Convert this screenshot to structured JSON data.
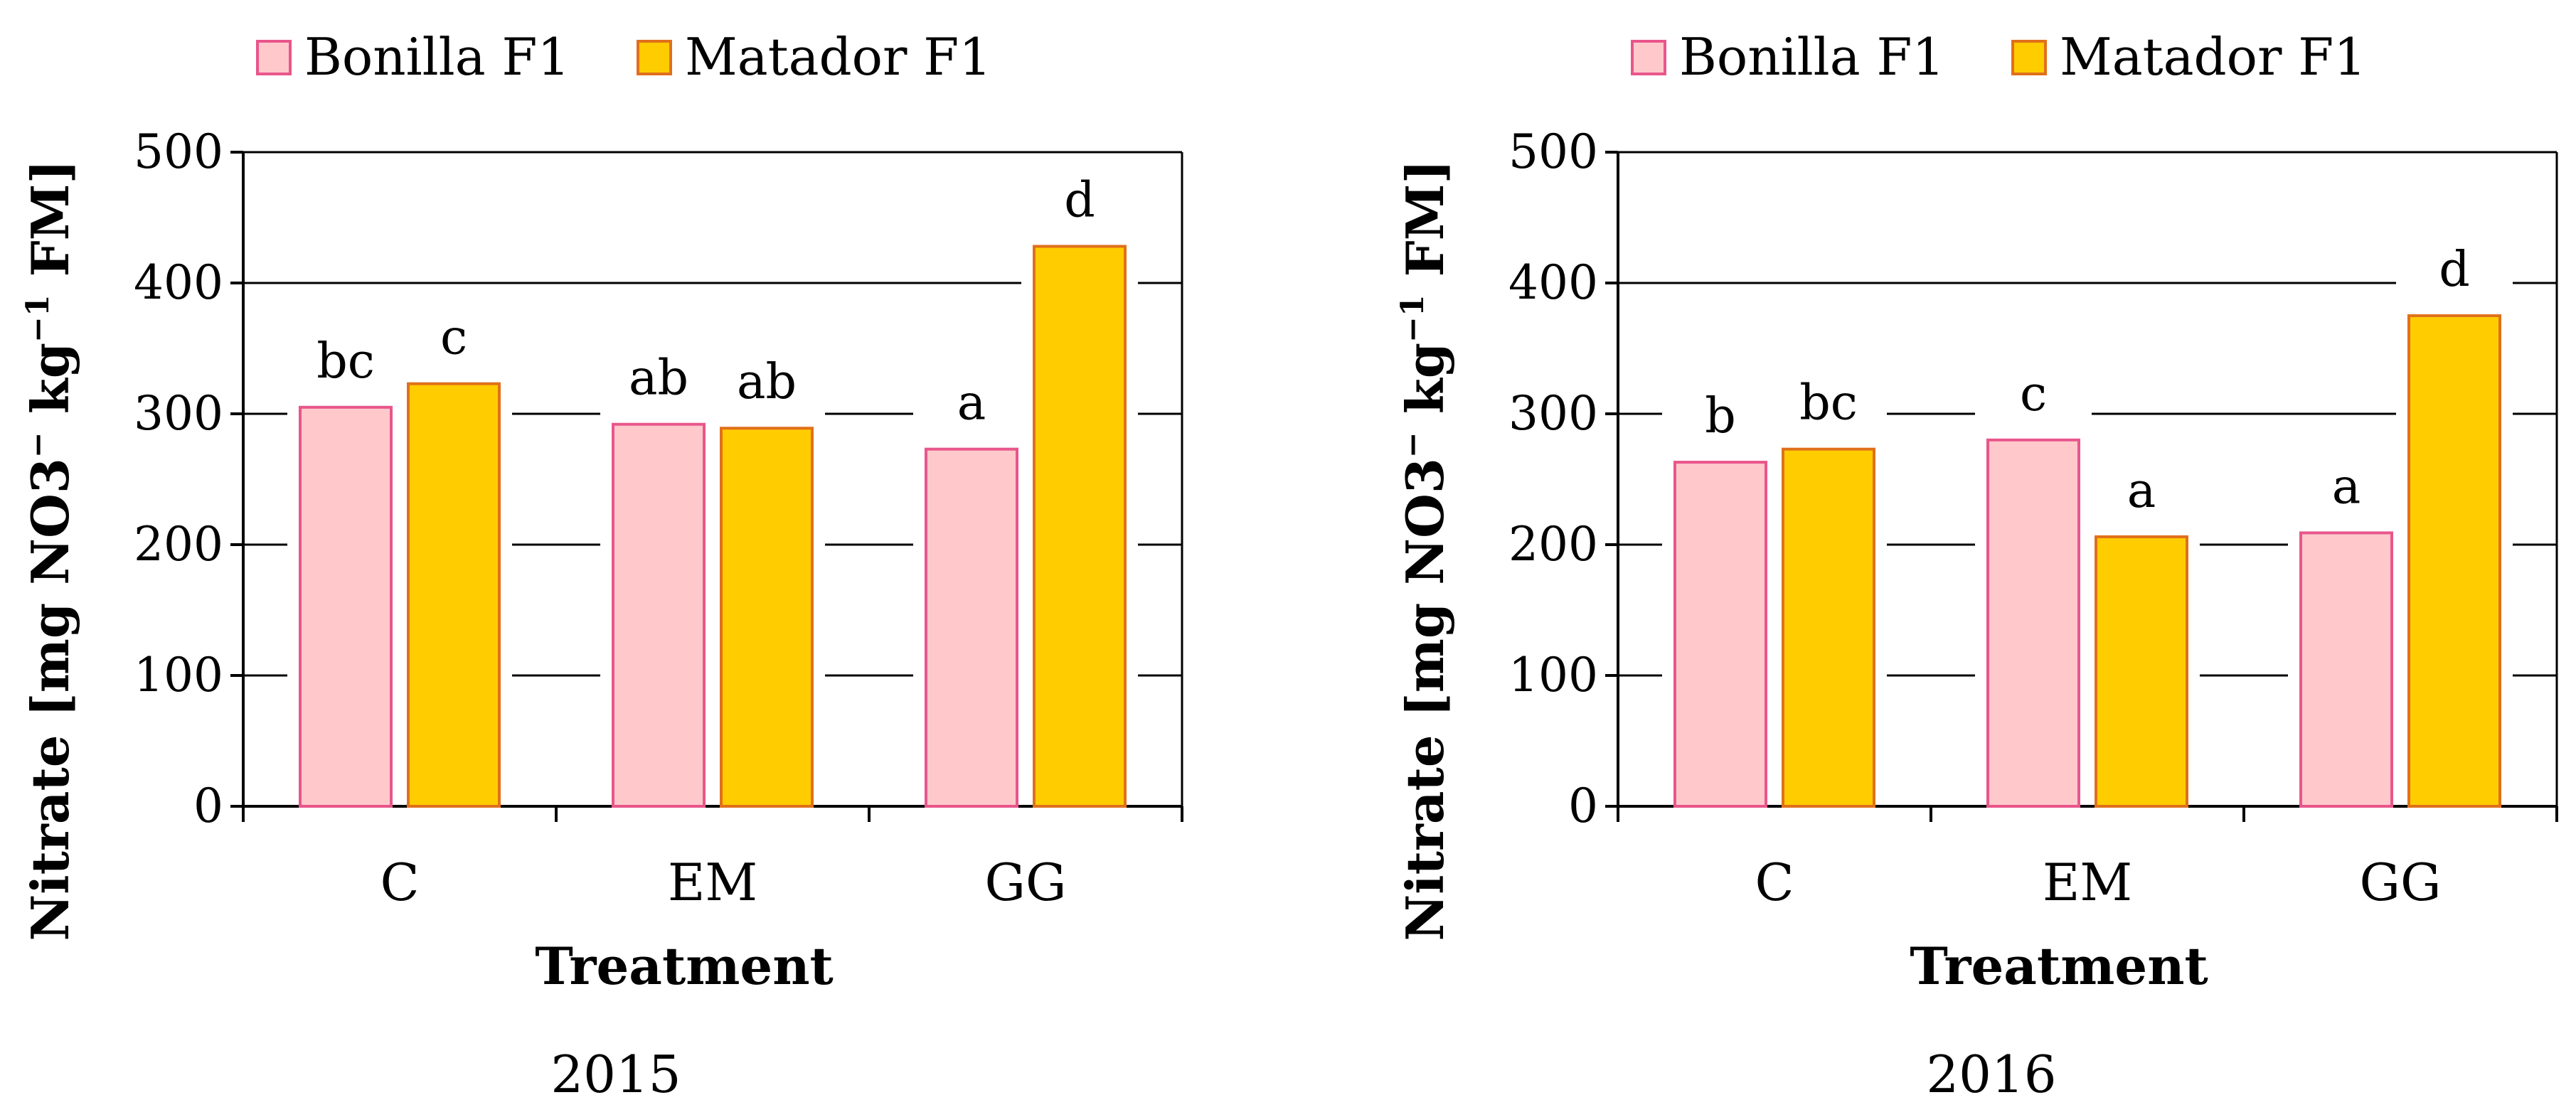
{
  "colors": {
    "bonilla_fill": "#ffc9cc",
    "bonilla_stroke": "#e8568b",
    "matador_fill": "#ffcc00",
    "matador_stroke": "#e0701b"
  },
  "chart_data": [
    {
      "type": "bar",
      "caption": "2015",
      "categories": [
        "C",
        "EM",
        "GG"
      ],
      "series": [
        {
          "name": "Bonilla F1",
          "values": [
            305,
            292,
            273
          ],
          "letters": [
            "bc",
            "ab",
            "a"
          ]
        },
        {
          "name": "Matador F1",
          "values": [
            323,
            289,
            428
          ],
          "letters": [
            "c",
            "ab",
            "d"
          ]
        }
      ],
      "xlabel": "Treatment",
      "ylabel_parts": [
        "Nitrate [mg NO3",
        "−",
        " kg",
        "−1",
        " FM]"
      ],
      "ylim": [
        0,
        500
      ],
      "yticks": [
        "0",
        "100",
        "200",
        "300",
        "400",
        "500"
      ],
      "grid": true,
      "legend": "top"
    },
    {
      "type": "bar",
      "caption": "2016",
      "categories": [
        "C",
        "EM",
        "GG"
      ],
      "series": [
        {
          "name": "Bonilla F1",
          "values": [
            263,
            280,
            209
          ],
          "letters": [
            "b",
            "c",
            "a"
          ]
        },
        {
          "name": "Matador F1",
          "values": [
            273,
            206,
            375
          ],
          "letters": [
            "bc",
            "a",
            "d"
          ]
        }
      ],
      "xlabel": "Treatment",
      "ylabel_parts": [
        "Nitrate [mg NO3",
        "−",
        " kg",
        "−1",
        " FM]"
      ],
      "ylim": [
        0,
        500
      ],
      "yticks": [
        "0",
        "100",
        "200",
        "300",
        "400",
        "500"
      ],
      "grid": true,
      "legend": "top"
    }
  ]
}
